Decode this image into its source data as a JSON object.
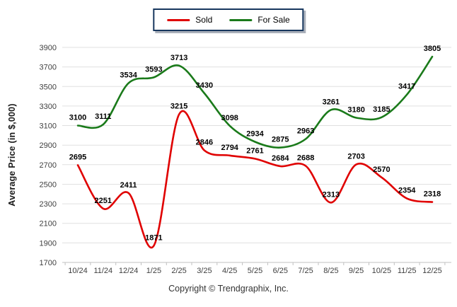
{
  "footer": {
    "copyright": "Copyright © Trendgraphix, Inc."
  },
  "chart_data": {
    "type": "line",
    "title": "",
    "categories": [
      "10/24",
      "11/24",
      "12/24",
      "1/25",
      "2/25",
      "3/25",
      "4/25",
      "5/25",
      "6/25",
      "7/25",
      "8/25",
      "9/25",
      "10/25",
      "11/25",
      "12/25"
    ],
    "series": [
      {
        "name": "Sold",
        "color": "#e00000",
        "values": [
          2695,
          2251,
          2411,
          1871,
          3215,
          2846,
          2794,
          2761,
          2684,
          2688,
          2313,
          2703,
          2570,
          2354,
          2318
        ]
      },
      {
        "name": "For Sale",
        "color": "#1a7a1a",
        "values": [
          3100,
          3111,
          3534,
          3593,
          3713,
          3430,
          3098,
          2934,
          2875,
          2963,
          3261,
          3180,
          3185,
          3417,
          3805
        ]
      }
    ],
    "xlabel": "",
    "ylabel": "Average Price (in $,000)",
    "ylim": [
      1700,
      3900
    ],
    "ytick_step": 200,
    "grid": "horizontal",
    "legend_position": "top-center",
    "data_labels": true,
    "colors": {
      "grid": "#e0e0e0",
      "axis_line": "#c0c0c0",
      "tick_text": "#404040",
      "label_text": "#000000",
      "legend_border": "#17375e",
      "background": "#ffffff"
    }
  }
}
